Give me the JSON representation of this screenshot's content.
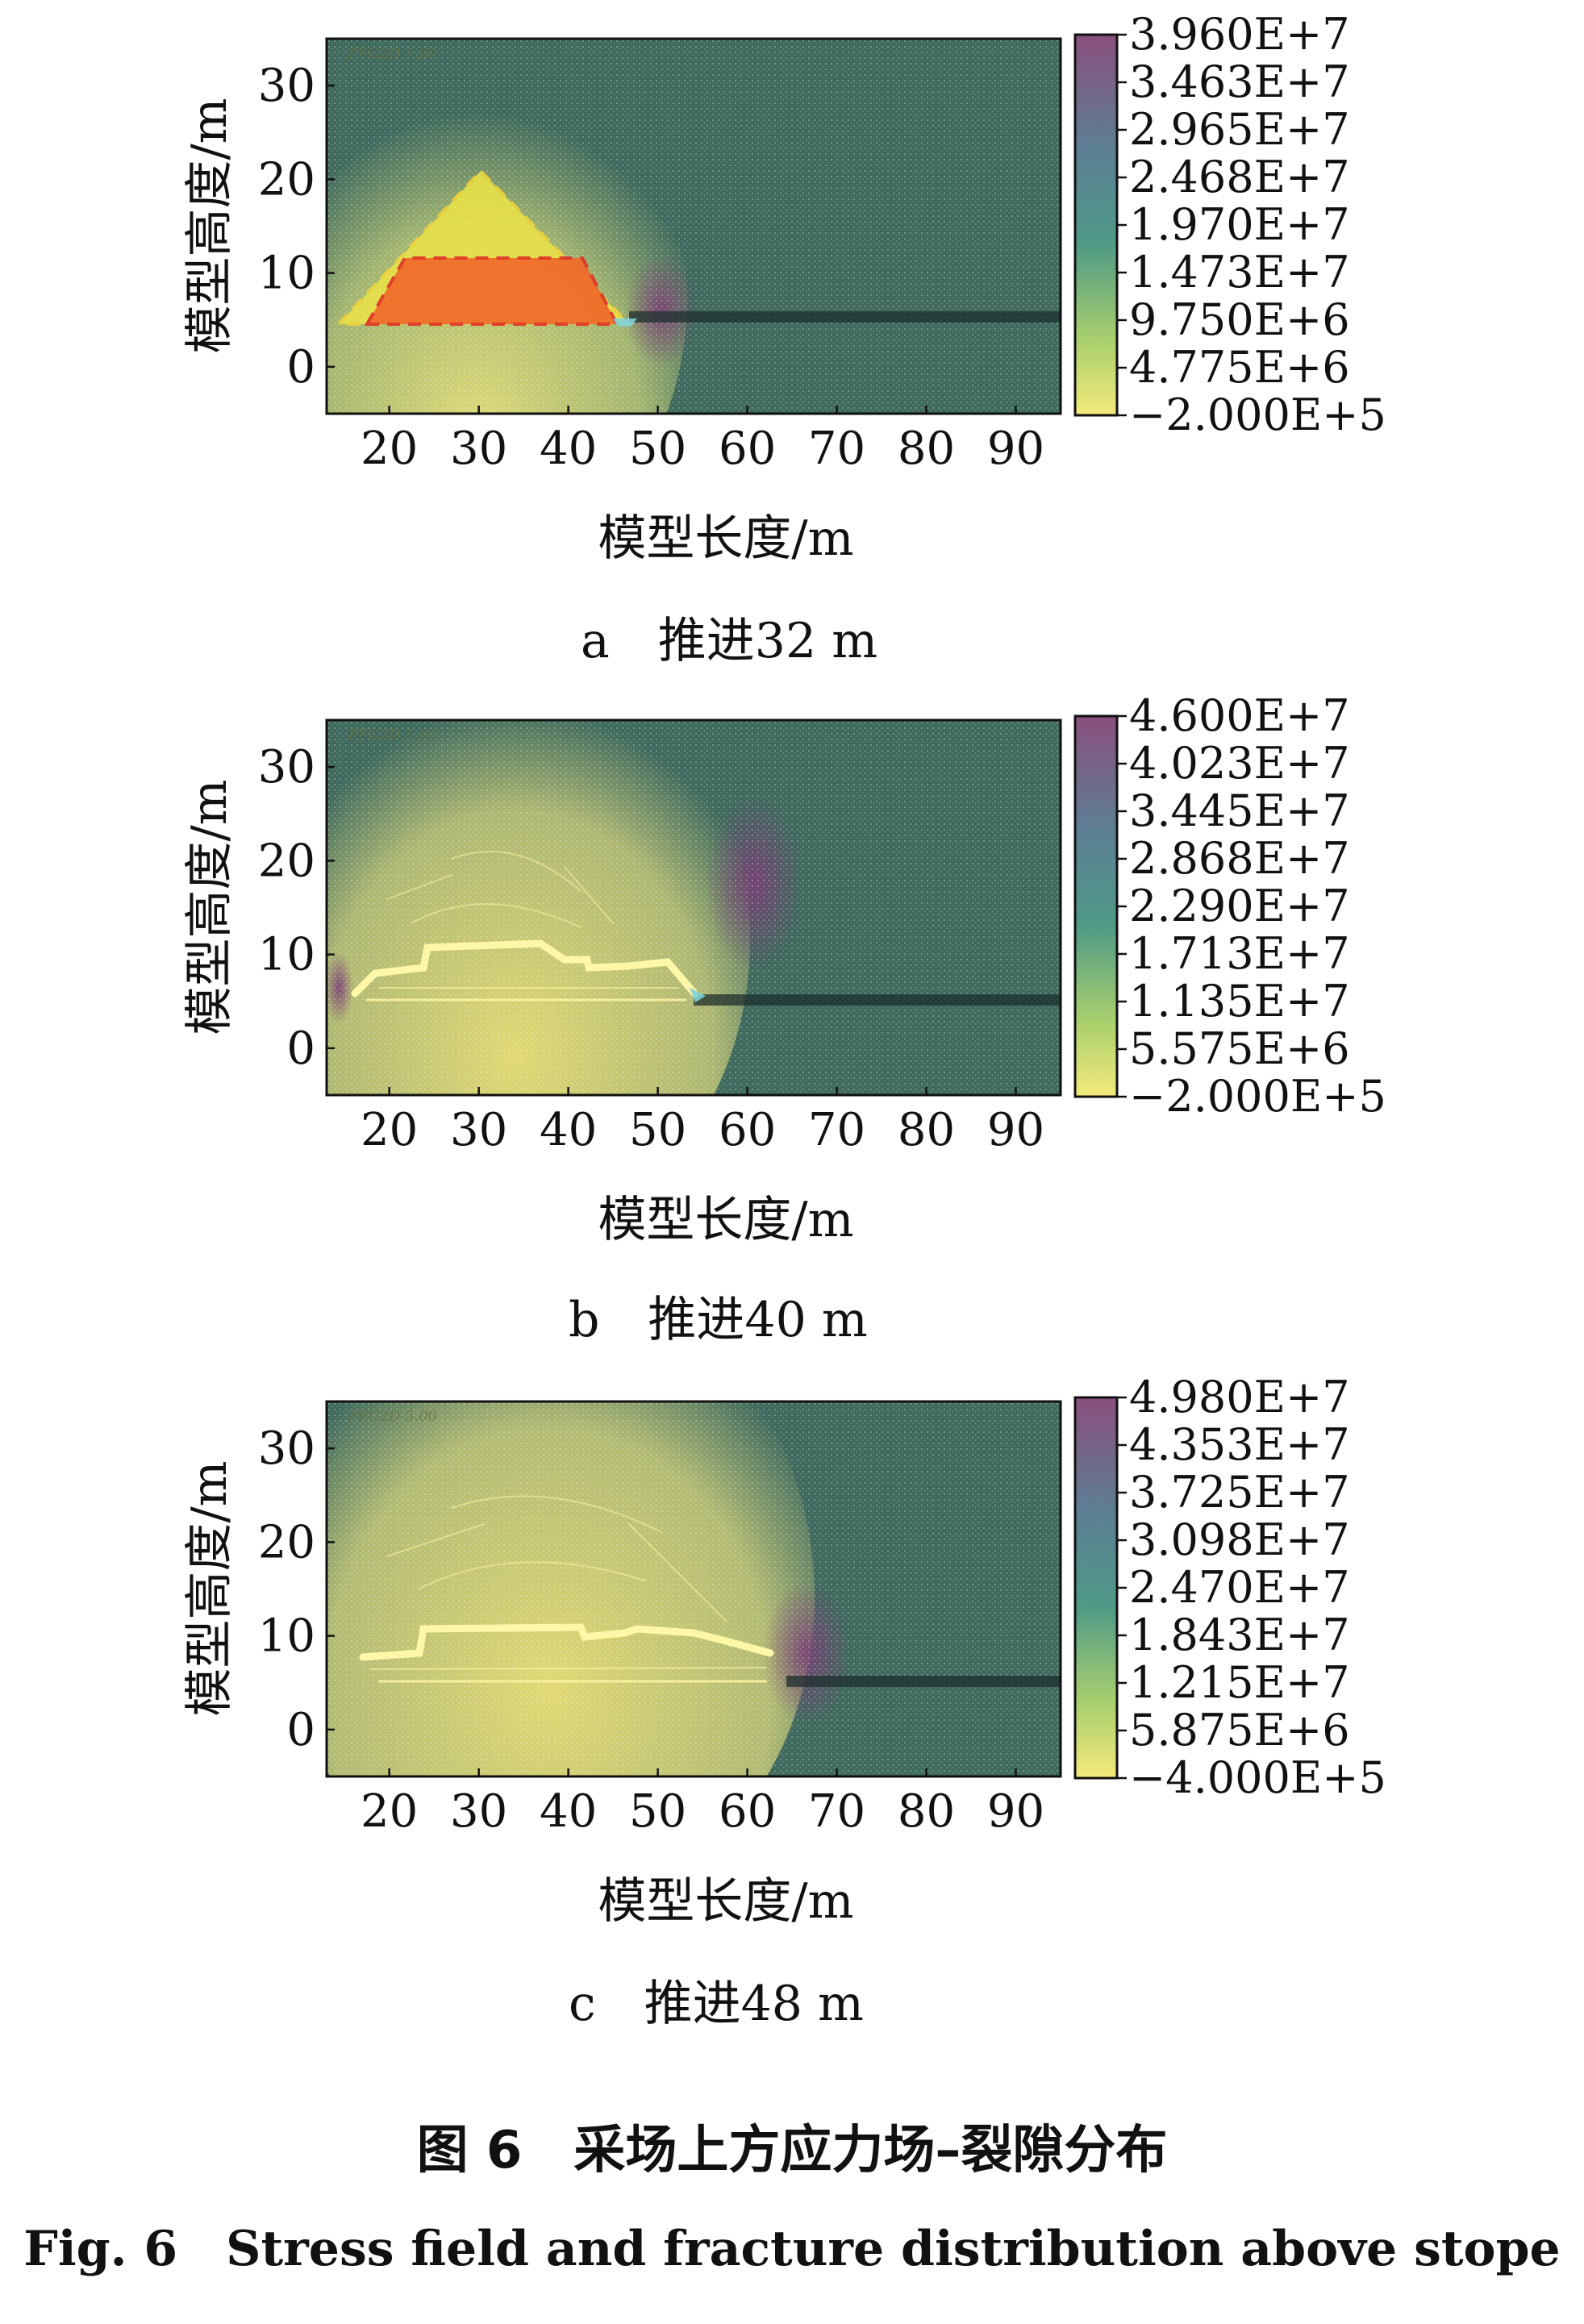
{
  "chart_data": [
    {
      "type": "heatmap",
      "subcaption": "a　推进32 m",
      "xlabel": "模型长度/m",
      "ylabel": "模型高度/m",
      "xlim": [
        13,
        95
      ],
      "ylim": [
        -5,
        35
      ],
      "xticks": [
        "20",
        "30",
        "40",
        "50",
        "60",
        "70",
        "80",
        "90"
      ],
      "yticks": [
        "30",
        "20",
        "10",
        "0"
      ],
      "watermark": "PFC2D 5.00",
      "colorbar_ticks": [
        "3.960E+7",
        "3.463E+7",
        "2.965E+7",
        "2.468E+7",
        "1.970E+7",
        "1.473E+7",
        "9.750E+6",
        "4.775E+6",
        "−2.000E+5"
      ],
      "colors": {
        "high": "#8a4f7d",
        "mid": "#4f8f86",
        "low": "#e6e173",
        "zone_outer": "#e8e24a",
        "zone_inner": "#f06a2a"
      }
    },
    {
      "type": "heatmap",
      "subcaption": "b　推进40 m",
      "xlabel": "模型长度/m",
      "ylabel": "模型高度/m",
      "xlim": [
        13,
        95
      ],
      "ylim": [
        -5,
        35
      ],
      "xticks": [
        "20",
        "30",
        "40",
        "50",
        "60",
        "70",
        "80",
        "90"
      ],
      "yticks": [
        "30",
        "20",
        "10",
        "0"
      ],
      "watermark": "PFC2D 5.00",
      "colorbar_ticks": [
        "4.600E+7",
        "4.023E+7",
        "3.445E+7",
        "2.868E+7",
        "2.290E+7",
        "1.713E+7",
        "1.135E+7",
        "5.575E+6",
        "−2.000E+5"
      ],
      "colors": {
        "high": "#8a4f7d",
        "mid": "#4f8f86",
        "low": "#e6e173"
      }
    },
    {
      "type": "heatmap",
      "subcaption": "c　推进48 m",
      "xlabel": "模型长度/m",
      "ylabel": "模型高度/m",
      "xlim": [
        13,
        95
      ],
      "ylim": [
        -5,
        35
      ],
      "xticks": [
        "20",
        "30",
        "40",
        "50",
        "60",
        "70",
        "80",
        "90"
      ],
      "yticks": [
        "30",
        "20",
        "10",
        "0"
      ],
      "watermark": "PFC2D 5.00",
      "colorbar_ticks": [
        "4.980E+7",
        "4.353E+7",
        "3.725E+7",
        "3.098E+7",
        "2.470E+7",
        "1.843E+7",
        "1.215E+7",
        "5.875E+6",
        "−4.000E+5"
      ],
      "colors": {
        "high": "#8a4f7d",
        "mid": "#4f8f86",
        "low": "#e6e173"
      }
    }
  ],
  "figure": {
    "caption_cn": "图 6　采场上方应力场–裂隙分布",
    "caption_en": "Fig. 6　Stress field and fracture distribution above stope"
  }
}
